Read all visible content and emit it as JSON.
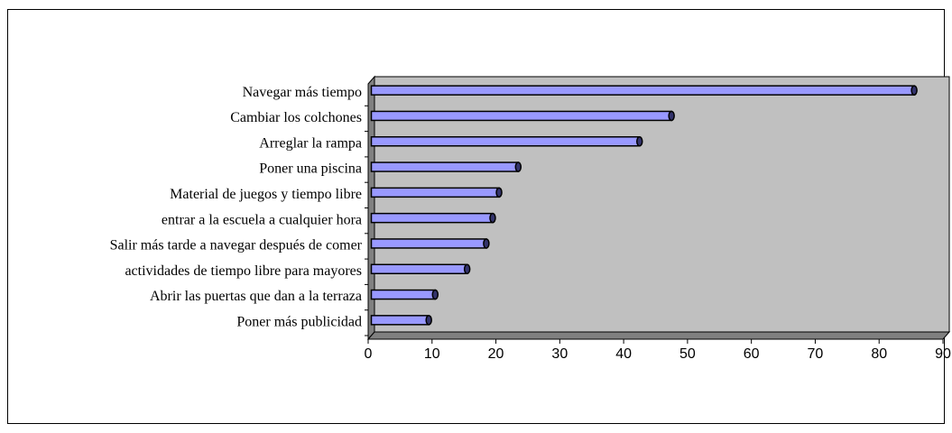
{
  "chart_data": {
    "type": "barh",
    "categories": [
      "Navegar más tiempo",
      "Cambiar los colchones",
      "Arreglar la rampa",
      "Poner una piscina",
      "Material de juegos y tiempo libre",
      "entrar a la escuela a cualquier hora",
      "Salir más tarde a navegar después de comer",
      "actividades de tiempo libre para mayores",
      "Abrir las puertas que dan a la terraza",
      "Poner más publicidad"
    ],
    "values": [
      85,
      47,
      42,
      23,
      20,
      19,
      18,
      15,
      10,
      9
    ],
    "color": "#9999ff",
    "xlim": [
      0,
      90
    ],
    "xticks": [
      0,
      10,
      20,
      30,
      40,
      50,
      60,
      70,
      80,
      90
    ]
  }
}
